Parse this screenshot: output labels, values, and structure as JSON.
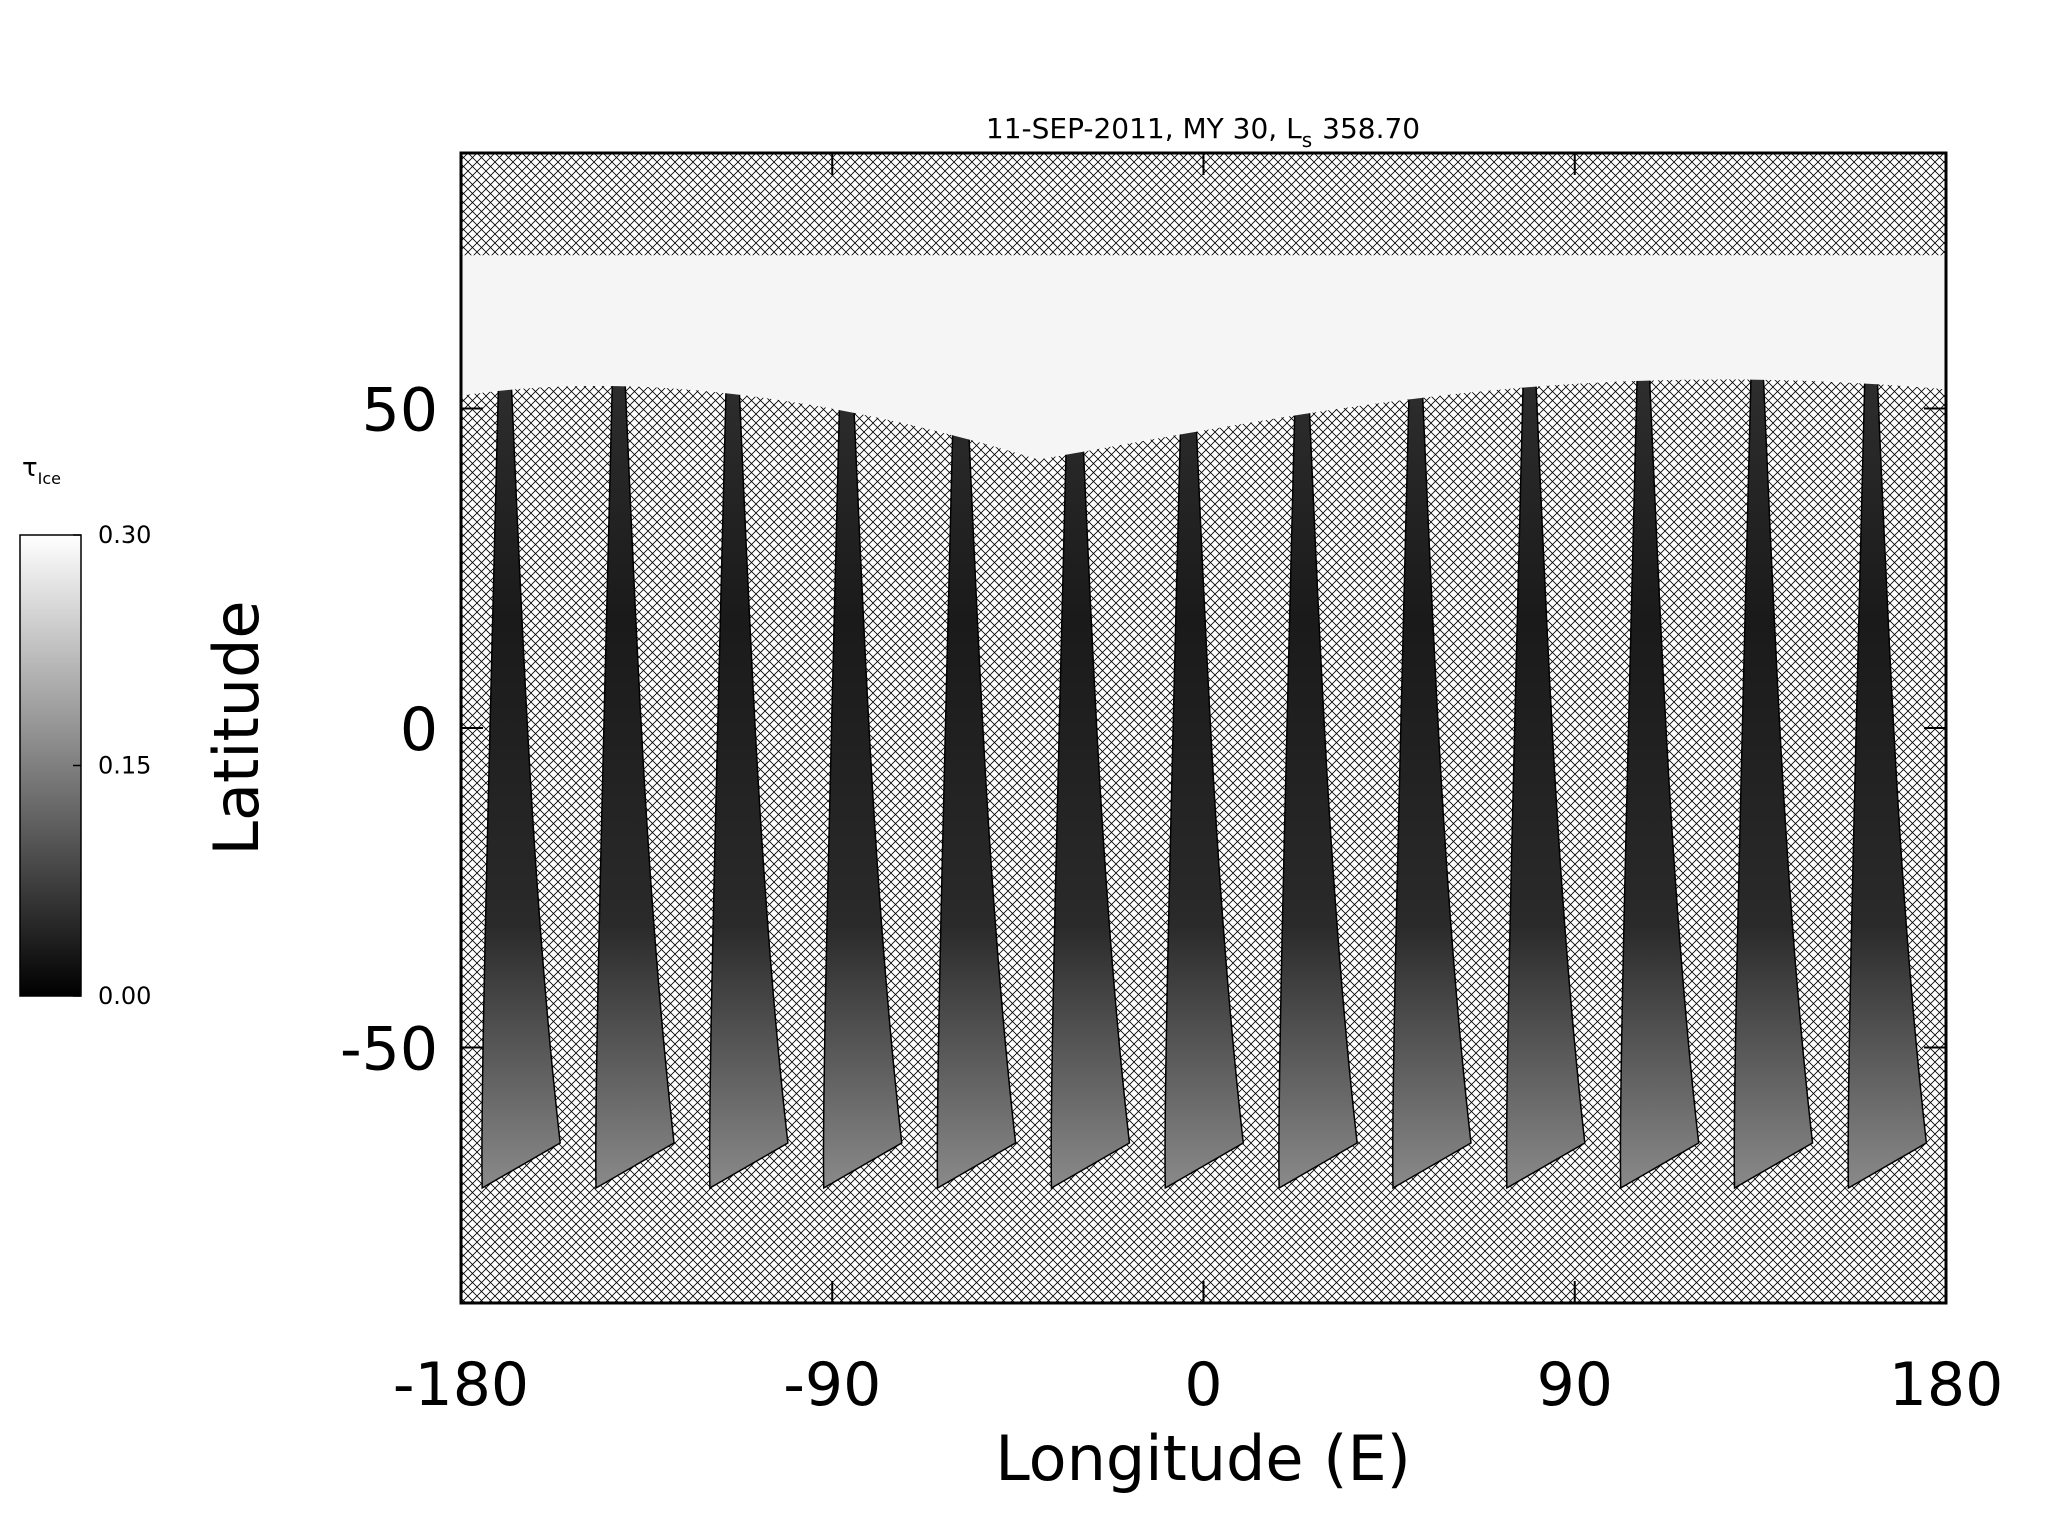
{
  "chart_data": {
    "type": "map",
    "title": "11-SEP-2011, MY 30,  L",
    "title_subscript": "s",
    "title_value": "358.70",
    "xlabel": "Longitude (E)",
    "ylabel": "Latitude",
    "xlim": [
      -180,
      180
    ],
    "xticks": [
      -180,
      -90,
      0,
      90,
      180
    ],
    "ylim": [
      -90,
      90
    ],
    "yticks": [
      -50,
      0,
      50
    ],
    "colorbar": {
      "label": "τ",
      "label_subscript": "Ice",
      "lim": [
        0,
        0.3
      ],
      "ticks": [
        {
          "value": 0,
          "label": "0.00"
        },
        {
          "value": 0.15,
          "label": "0.15"
        },
        {
          "value": 0.3,
          "label": "0.30"
        }
      ]
    }
  }
}
